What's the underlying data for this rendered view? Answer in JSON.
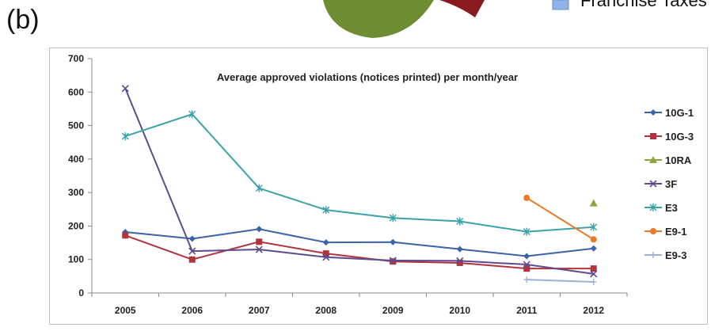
{
  "panel_label": "(b)",
  "fragment": {
    "legend_text": "Franchise Taxes",
    "colors": {
      "pie_green": "#6e8c32",
      "pie_red": "#8a1a22",
      "legend_blue": "#8fb3e8"
    }
  },
  "chart_data": {
    "type": "line",
    "title": "Average approved violations (notices printed) per month/year",
    "xlabel": "",
    "ylabel": "",
    "categories": [
      "2005",
      "2006",
      "2007",
      "2008",
      "2009",
      "2010",
      "2011",
      "2012"
    ],
    "ylim": [
      0,
      700
    ],
    "yticks": [
      0,
      100,
      200,
      300,
      400,
      500,
      600,
      700
    ],
    "grid": false,
    "legend_position": "right",
    "series": [
      {
        "name": "10G-1",
        "color": "#3a63a8",
        "marker": "diamond",
        "values": [
          182,
          162,
          191,
          151,
          152,
          131,
          110,
          133
        ]
      },
      {
        "name": "10G-3",
        "color": "#b3333d",
        "marker": "square",
        "values": [
          172,
          100,
          153,
          118,
          94,
          90,
          73,
          73
        ]
      },
      {
        "name": "10RA",
        "color": "#8aa63c",
        "marker": "triangle",
        "values": [
          null,
          null,
          null,
          null,
          null,
          null,
          null,
          268
        ]
      },
      {
        "name": "3F",
        "color": "#5f4b8b",
        "marker": "x",
        "values": [
          611,
          125,
          130,
          107,
          97,
          96,
          85,
          57
        ]
      },
      {
        "name": "E3",
        "color": "#3aa3a8",
        "marker": "star",
        "values": [
          468,
          534,
          313,
          248,
          224,
          214,
          183,
          197
        ]
      },
      {
        "name": "E9-1",
        "color": "#e87a2c",
        "marker": "circle",
        "values": [
          null,
          null,
          null,
          null,
          null,
          null,
          284,
          160
        ]
      },
      {
        "name": "E9-3",
        "color": "#9bb1dc",
        "marker": "plus",
        "values": [
          null,
          null,
          null,
          null,
          null,
          null,
          40,
          33
        ]
      }
    ]
  }
}
